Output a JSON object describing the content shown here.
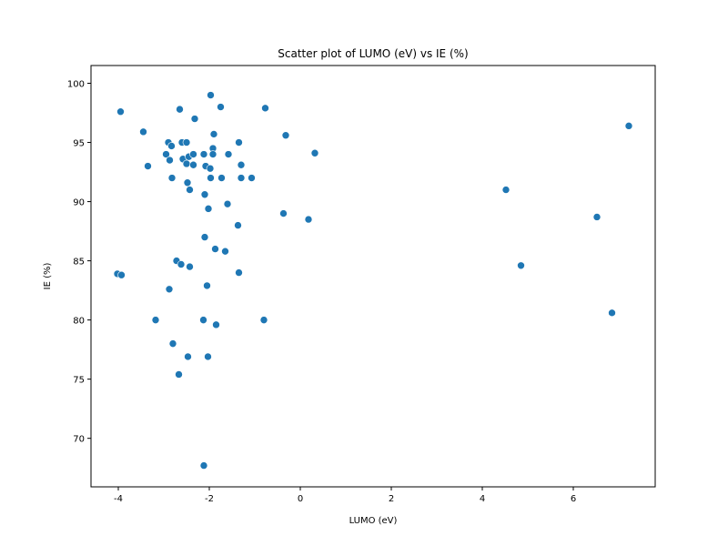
{
  "chart_data": {
    "type": "scatter",
    "title": "Scatter plot of LUMO (eV) vs IE (%)",
    "xlabel": "LUMO (eV)",
    "ylabel": "IE (%)",
    "xlim": [
      -4.6,
      7.8
    ],
    "ylim": [
      65.9,
      101.5
    ],
    "xticks": [
      -4,
      -2,
      0,
      2,
      4,
      6
    ],
    "yticks": [
      70,
      75,
      80,
      85,
      90,
      95,
      100
    ],
    "grid": false,
    "marker_color": "#1f77b4",
    "points": [
      {
        "x": -3.95,
        "y": 97.6
      },
      {
        "x": -3.45,
        "y": 95.9
      },
      {
        "x": -3.35,
        "y": 93.0
      },
      {
        "x": -4.02,
        "y": 83.9
      },
      {
        "x": -3.93,
        "y": 83.8
      },
      {
        "x": -3.18,
        "y": 80.0
      },
      {
        "x": -2.9,
        "y": 95.0
      },
      {
        "x": -2.83,
        "y": 94.7
      },
      {
        "x": -2.95,
        "y": 94.0
      },
      {
        "x": -2.87,
        "y": 93.5
      },
      {
        "x": -2.82,
        "y": 92.0
      },
      {
        "x": -2.88,
        "y": 82.6
      },
      {
        "x": -2.8,
        "y": 78.0
      },
      {
        "x": -2.65,
        "y": 97.8
      },
      {
        "x": -2.6,
        "y": 95.0
      },
      {
        "x": -2.5,
        "y": 95.0
      },
      {
        "x": -2.58,
        "y": 93.6
      },
      {
        "x": -2.5,
        "y": 93.2
      },
      {
        "x": -2.45,
        "y": 93.8
      },
      {
        "x": -2.48,
        "y": 91.6
      },
      {
        "x": -2.43,
        "y": 91.0
      },
      {
        "x": -2.72,
        "y": 85.0
      },
      {
        "x": -2.62,
        "y": 84.7
      },
      {
        "x": -2.43,
        "y": 84.5
      },
      {
        "x": -2.67,
        "y": 75.4
      },
      {
        "x": -2.47,
        "y": 76.9
      },
      {
        "x": -2.32,
        "y": 97.0
      },
      {
        "x": -2.35,
        "y": 94.0
      },
      {
        "x": -2.35,
        "y": 93.1
      },
      {
        "x": -2.12,
        "y": 94.0
      },
      {
        "x": -2.08,
        "y": 93.0
      },
      {
        "x": -2.1,
        "y": 90.6
      },
      {
        "x": -2.02,
        "y": 89.4
      },
      {
        "x": -2.1,
        "y": 87.0
      },
      {
        "x": -2.05,
        "y": 82.9
      },
      {
        "x": -2.13,
        "y": 80.0
      },
      {
        "x": -2.03,
        "y": 76.9
      },
      {
        "x": -2.12,
        "y": 67.7
      },
      {
        "x": -1.97,
        "y": 99.0
      },
      {
        "x": -1.9,
        "y": 95.7
      },
      {
        "x": -1.92,
        "y": 94.5
      },
      {
        "x": -1.92,
        "y": 94.0
      },
      {
        "x": -1.98,
        "y": 92.8
      },
      {
        "x": -1.97,
        "y": 92.0
      },
      {
        "x": -1.87,
        "y": 86.0
      },
      {
        "x": -1.85,
        "y": 79.6
      },
      {
        "x": -1.75,
        "y": 98.0
      },
      {
        "x": -1.73,
        "y": 92.0
      },
      {
        "x": -1.58,
        "y": 94.0
      },
      {
        "x": -1.6,
        "y": 89.8
      },
      {
        "x": -1.65,
        "y": 85.8
      },
      {
        "x": -1.35,
        "y": 95.0
      },
      {
        "x": -1.3,
        "y": 93.1
      },
      {
        "x": -1.3,
        "y": 92.0
      },
      {
        "x": -1.37,
        "y": 88.0
      },
      {
        "x": -1.35,
        "y": 84.0
      },
      {
        "x": -1.07,
        "y": 92.0
      },
      {
        "x": -0.77,
        "y": 97.9
      },
      {
        "x": -0.8,
        "y": 80.0
      },
      {
        "x": -0.32,
        "y": 95.6
      },
      {
        "x": -0.37,
        "y": 89.0
      },
      {
        "x": 0.32,
        "y": 94.1
      },
      {
        "x": 0.18,
        "y": 88.5
      },
      {
        "x": 4.52,
        "y": 91.0
      },
      {
        "x": 4.85,
        "y": 84.6
      },
      {
        "x": 6.52,
        "y": 88.7
      },
      {
        "x": 6.85,
        "y": 80.6
      },
      {
        "x": 7.22,
        "y": 96.4
      }
    ]
  }
}
